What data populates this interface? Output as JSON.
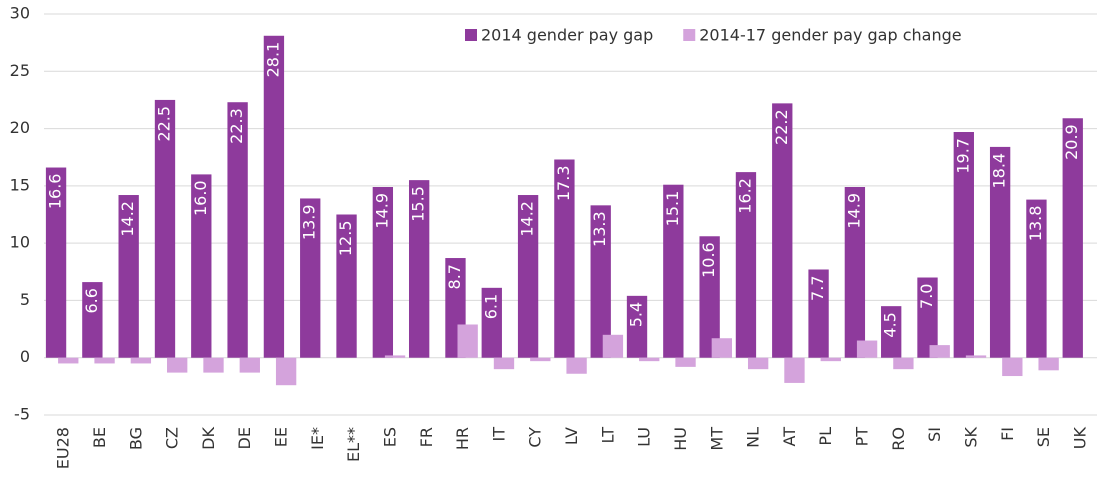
{
  "chart_data": {
    "type": "bar",
    "categories": [
      "EU28",
      "BE",
      "BG",
      "CZ",
      "DK",
      "DE",
      "EE",
      "IE*",
      "EL**",
      "ES",
      "FR",
      "HR",
      "IT",
      "CY",
      "LV",
      "LT",
      "LU",
      "HU",
      "MT",
      "NL",
      "AT",
      "PL",
      "PT",
      "RO",
      "SI",
      "SK",
      "FI",
      "SE",
      "UK"
    ],
    "series": [
      {
        "name": "2014 gender pay gap",
        "color": "#8e3a9c",
        "values": [
          16.6,
          6.6,
          14.2,
          22.5,
          16.0,
          22.3,
          28.1,
          13.9,
          12.5,
          14.9,
          15.5,
          8.7,
          6.1,
          14.2,
          17.3,
          13.3,
          5.4,
          15.1,
          10.6,
          16.2,
          22.2,
          7.7,
          14.9,
          4.5,
          7.0,
          19.7,
          18.4,
          13.8,
          20.9
        ],
        "value_labels": [
          "16.6",
          "6.6",
          "14.2",
          "22.5",
          "16.0",
          "22.3",
          "28.1",
          "13.9",
          "12.5",
          "14.9",
          "15.5",
          "8.7",
          "6.1",
          "14.2",
          "17.3",
          "13.3",
          "5.4",
          "15.1",
          "10.6",
          "16.2",
          "22.2",
          "7.7",
          "14.9",
          "4.5",
          "7.0",
          "19.7",
          "18.4",
          "13.8",
          "20.9"
        ]
      },
      {
        "name": "2014-17 gender pay gap change",
        "color": "#d4a3dc",
        "values": [
          -0.5,
          -0.5,
          -0.5,
          -1.3,
          -1.3,
          -1.3,
          -2.4,
          null,
          null,
          0.2,
          0,
          2.9,
          -1.0,
          -0.3,
          -1.4,
          2.0,
          -0.3,
          -0.8,
          1.7,
          -1.0,
          -2.2,
          -0.3,
          1.5,
          -1.0,
          1.1,
          0.2,
          -1.6,
          -1.1,
          null
        ]
      }
    ],
    "ylim": [
      -5,
      30
    ],
    "yticks": [
      -5,
      0,
      5,
      10,
      15,
      20,
      25,
      30
    ],
    "grid": true,
    "legend": "top"
  }
}
